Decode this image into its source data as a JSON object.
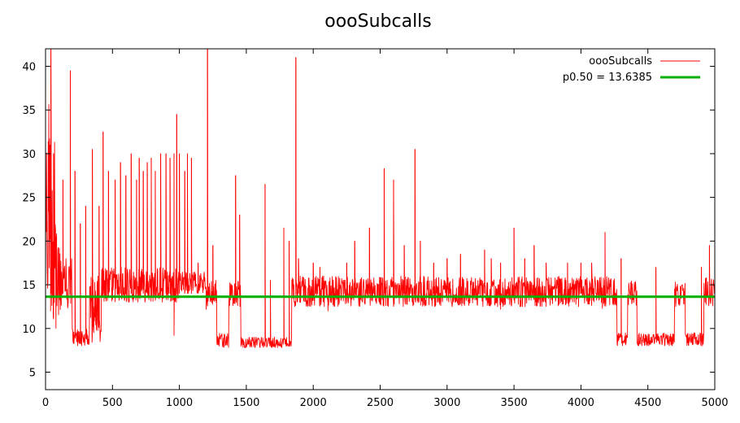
{
  "chart_data": {
    "type": "line",
    "title": "oooSubcalls",
    "xlabel": "",
    "ylabel": "",
    "xlim": [
      0,
      5000
    ],
    "ylim": [
      3,
      42
    ],
    "grid": false,
    "legend_position": "top-right",
    "x_ticks": [
      0,
      500,
      1000,
      1500,
      2000,
      2500,
      3000,
      3500,
      4000,
      4500,
      5000
    ],
    "x_tick_labels": [
      "0",
      "500",
      "1000",
      "1500",
      "2000",
      "2500",
      "3000",
      "3500",
      "4000",
      "4500",
      "5000"
    ],
    "y_ticks": [
      5,
      10,
      15,
      20,
      25,
      30,
      35,
      40
    ],
    "y_tick_labels": [
      "5",
      "10",
      "15",
      "20",
      "25",
      "30",
      "35",
      "40"
    ],
    "series": [
      {
        "name": "oooSubcalls",
        "color": "#ff0000",
        "segments": [
          {
            "x0": 0,
            "x1": 30,
            "low": 12,
            "high": 42
          },
          {
            "x0": 30,
            "x1": 70,
            "low": 10,
            "high": 36
          },
          {
            "x0": 70,
            "x1": 120,
            "low": 10,
            "high": 22
          },
          {
            "x0": 120,
            "x1": 200,
            "low": 12,
            "high": 18
          },
          {
            "x0": 200,
            "x1": 330,
            "low": 8,
            "high": 10
          },
          {
            "x0": 330,
            "x1": 420,
            "low": 8,
            "high": 16
          },
          {
            "x0": 420,
            "x1": 1000,
            "low": 13,
            "high": 17
          },
          {
            "x0": 1000,
            "x1": 1200,
            "low": 14,
            "high": 16.5
          },
          {
            "x0": 1200,
            "x1": 1280,
            "low": 12.5,
            "high": 15.5
          },
          {
            "x0": 1280,
            "x1": 1370,
            "low": 7.8,
            "high": 9.5
          },
          {
            "x0": 1370,
            "x1": 1460,
            "low": 12.5,
            "high": 15.5
          },
          {
            "x0": 1460,
            "x1": 1840,
            "low": 7.8,
            "high": 9
          },
          {
            "x0": 1840,
            "x1": 4270,
            "low": 12.5,
            "high": 16
          },
          {
            "x0": 4270,
            "x1": 4350,
            "low": 8,
            "high": 9.5
          },
          {
            "x0": 4350,
            "x1": 4420,
            "low": 12.5,
            "high": 15.5
          },
          {
            "x0": 4420,
            "x1": 4700,
            "low": 8,
            "high": 9.5
          },
          {
            "x0": 4700,
            "x1": 4780,
            "low": 12.5,
            "high": 15.5
          },
          {
            "x0": 4780,
            "x1": 4920,
            "low": 8,
            "high": 9.5
          },
          {
            "x0": 4920,
            "x1": 5000,
            "low": 12.5,
            "high": 16
          }
        ],
        "spikes": [
          [
            40,
            42
          ],
          [
            60,
            30
          ],
          [
            80,
            18
          ],
          [
            100,
            16
          ],
          [
            130,
            27
          ],
          [
            185,
            39.5
          ],
          [
            220,
            28
          ],
          [
            260,
            22
          ],
          [
            300,
            24
          ],
          [
            350,
            30.5
          ],
          [
            400,
            24
          ],
          [
            430,
            32.5
          ],
          [
            470,
            28
          ],
          [
            520,
            27
          ],
          [
            560,
            29
          ],
          [
            600,
            27.5
          ],
          [
            640,
            30
          ],
          [
            680,
            27
          ],
          [
            700,
            29.5
          ],
          [
            730,
            28
          ],
          [
            760,
            29
          ],
          [
            790,
            29.5
          ],
          [
            820,
            28
          ],
          [
            860,
            30
          ],
          [
            900,
            30
          ],
          [
            930,
            29.5
          ],
          [
            960,
            30
          ],
          [
            980,
            34.5
          ],
          [
            1000,
            30
          ],
          [
            1040,
            28
          ],
          [
            1060,
            30
          ],
          [
            1090,
            29.5
          ],
          [
            1140,
            17.5
          ],
          [
            1210,
            42
          ],
          [
            1250,
            19.5
          ],
          [
            1420,
            27.5
          ],
          [
            1450,
            23
          ],
          [
            1640,
            26.5
          ],
          [
            1680,
            15.5
          ],
          [
            1780,
            21.5
          ],
          [
            1820,
            20
          ],
          [
            1870,
            41
          ],
          [
            1890,
            18
          ],
          [
            2000,
            17.5
          ],
          [
            2050,
            17
          ],
          [
            2250,
            17.5
          ],
          [
            2310,
            20
          ],
          [
            2420,
            21.5
          ],
          [
            2530,
            28.3
          ],
          [
            2600,
            27
          ],
          [
            2680,
            19.5
          ],
          [
            2760,
            30.5
          ],
          [
            2800,
            20
          ],
          [
            2900,
            17.5
          ],
          [
            3000,
            18
          ],
          [
            3100,
            18.5
          ],
          [
            3280,
            19
          ],
          [
            3330,
            18
          ],
          [
            3400,
            17.5
          ],
          [
            3500,
            21.5
          ],
          [
            3580,
            18
          ],
          [
            3650,
            19.5
          ],
          [
            3740,
            17.5
          ],
          [
            3900,
            17.5
          ],
          [
            4000,
            17.5
          ],
          [
            4080,
            17.5
          ],
          [
            4180,
            21
          ],
          [
            4300,
            18
          ],
          [
            4560,
            17
          ],
          [
            4900,
            17
          ],
          [
            4960,
            19.5
          ]
        ],
        "dips": [
          [
            960,
            9.2
          ],
          [
            1200,
            12.2
          ],
          [
            2110,
            12
          ],
          [
            3400,
            12.2
          ],
          [
            4160,
            12.3
          ]
        ]
      },
      {
        "name": "p0.50 = 13.6385",
        "color": "#00b000",
        "value": 13.6385
      }
    ]
  }
}
